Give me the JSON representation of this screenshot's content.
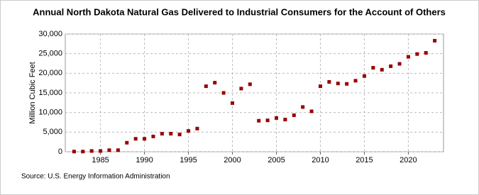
{
  "chart_data": {
    "type": "scatter",
    "title": "Annual North Dakota Natural Gas Delivered to Industrial Consumers for the Account of Others",
    "y_label": "Million Cubic Feet",
    "source": "Source: U.S. Energy Information Administration",
    "x": [
      1982,
      1983,
      1984,
      1985,
      1986,
      1987,
      1988,
      1989,
      1990,
      1991,
      1992,
      1993,
      1994,
      1995,
      1996,
      1997,
      1998,
      1999,
      2000,
      2001,
      2002,
      2003,
      2004,
      2005,
      2006,
      2007,
      2008,
      2009,
      2010,
      2011,
      2012,
      2013,
      2014,
      2015,
      2016,
      2017,
      2018,
      2019,
      2020,
      2021,
      2022,
      2023
    ],
    "series": [
      {
        "name": "North Dakota",
        "color": "#990000",
        "values": [
          50,
          50,
          200,
          200,
          400,
          400,
          2300,
          3300,
          3300,
          3900,
          4600,
          4600,
          4400,
          5300,
          5900,
          16700,
          17600,
          15000,
          12400,
          16100,
          17200,
          7900,
          8000,
          8600,
          8200,
          9300,
          11400,
          10300,
          16700,
          17800,
          17400,
          17300,
          18100,
          19300,
          21400,
          20900,
          21800,
          22400,
          24200,
          24900,
          25200,
          28300
        ]
      }
    ],
    "xlim": [
      1981,
      2024
    ],
    "xticks": [
      1985,
      1990,
      1995,
      2000,
      2005,
      2010,
      2015,
      2020
    ],
    "ylim": [
      0,
      30000
    ],
    "yticks": [
      0,
      {
        "value": 5000,
        "label": "5,000"
      },
      {
        "value": 10000,
        "label": "10,000"
      },
      {
        "value": 15000,
        "label": "15,000"
      },
      {
        "value": 20000,
        "label": "20,000"
      },
      {
        "value": 25000,
        "label": "25,000"
      },
      {
        "value": 30000,
        "label": "30,000"
      }
    ],
    "grid": true
  }
}
